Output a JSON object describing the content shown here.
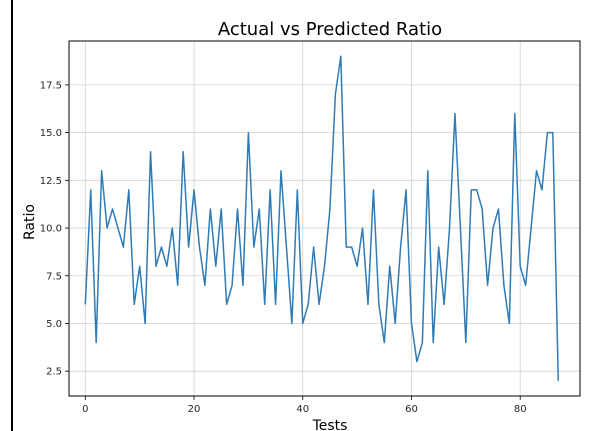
{
  "chart_data": {
    "type": "line",
    "title": "Actual vs Predicted Ratio",
    "xlabel": "Tests",
    "ylabel": "Ratio",
    "xlim": [
      -3,
      91
    ],
    "ylim": [
      1.2,
      19.8
    ],
    "xticks": [
      0,
      20,
      40,
      60,
      80
    ],
    "xtick_labels": [
      "0",
      "20",
      "40",
      "60",
      "80"
    ],
    "yticks": [
      2.5,
      5.0,
      7.5,
      10.0,
      12.5,
      15.0,
      17.5
    ],
    "ytick_labels": [
      "2.5",
      "5.0",
      "7.5",
      "10.0",
      "12.5",
      "15.0",
      "17.5"
    ],
    "grid": true,
    "line_color": "#2f7bb5",
    "series": [
      {
        "x": [
          0,
          1,
          2,
          3,
          4,
          5,
          6,
          7,
          8,
          9,
          10,
          11,
          12,
          13,
          14,
          15,
          16,
          17,
          18,
          19,
          20,
          21,
          22,
          23,
          24,
          25,
          26,
          27,
          28,
          29,
          30,
          31,
          32,
          33,
          34,
          35,
          36,
          37,
          38,
          39,
          40,
          41,
          42,
          43,
          44,
          45,
          46,
          47,
          48,
          49,
          50,
          51,
          52,
          53,
          54,
          55,
          56,
          57,
          58,
          59,
          60,
          61,
          62,
          63,
          64,
          65,
          66,
          67,
          68,
          69,
          70,
          71,
          72,
          73,
          74,
          75,
          76,
          77,
          78,
          79,
          80,
          81,
          82,
          83,
          84,
          85,
          86,
          87
        ],
        "values": [
          6,
          12,
          4,
          13,
          10,
          11,
          10,
          9,
          12,
          6,
          8,
          5,
          14,
          8,
          9,
          8,
          10,
          7,
          14,
          9,
          12,
          9,
          7,
          11,
          8,
          11,
          6,
          7,
          11,
          7,
          15,
          9,
          11,
          6,
          12,
          6,
          13,
          9,
          5,
          12,
          5,
          6,
          9,
          6,
          8,
          11,
          17,
          19,
          9,
          9,
          8,
          10,
          6,
          12,
          6,
          4,
          8,
          5,
          9,
          12,
          5,
          3,
          4,
          13,
          4,
          9,
          6,
          10,
          16,
          10,
          4,
          12,
          12,
          11,
          7,
          10,
          11,
          7,
          5,
          16,
          8,
          7,
          10,
          13,
          12,
          15,
          15,
          2
        ]
      }
    ]
  }
}
